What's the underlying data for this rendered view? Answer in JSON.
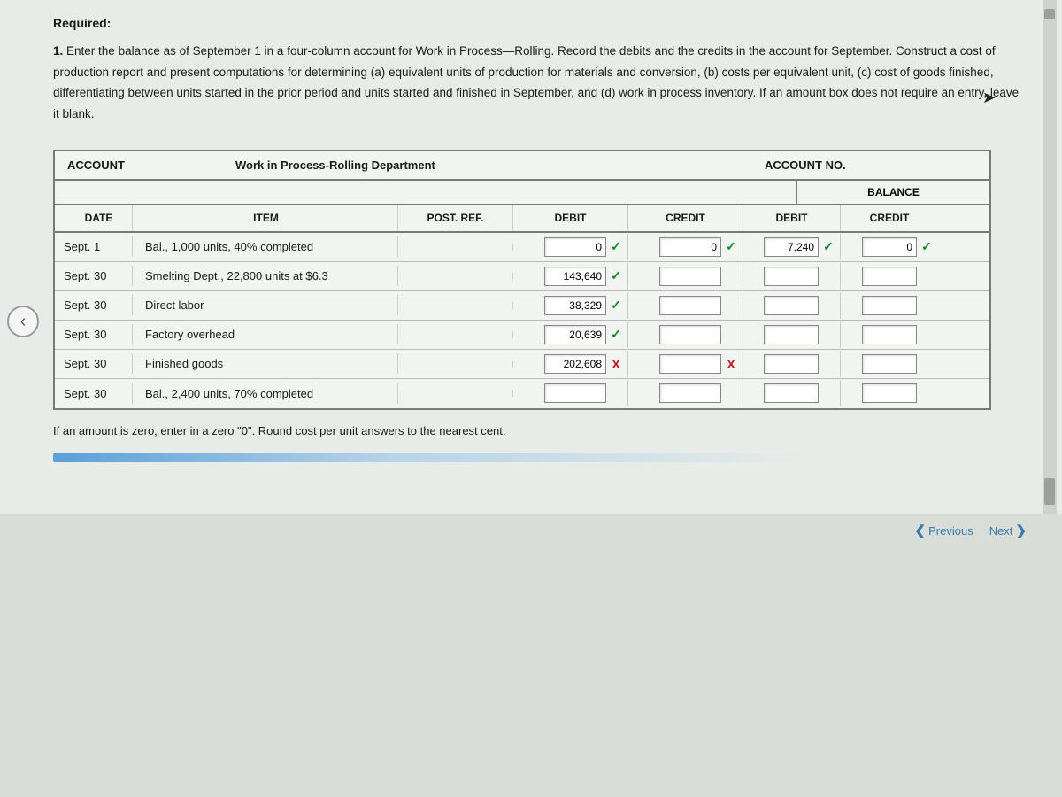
{
  "heading": "Required:",
  "instructions_prefix": "1.",
  "instructions": "Enter the balance as of September 1 in a four-column account for Work in Process—Rolling. Record the debits and the credits in the account for September. Construct a cost of production report and present computations for determining (a) equivalent units of production for materials and conversion, (b) costs per equivalent unit, (c) cost of goods finished, differentiating between units started in the prior period and units started and finished in September, and (d) work in process inventory. If an amount box does not require an entry, leave it blank.",
  "ledger": {
    "account_label": "ACCOUNT",
    "account_name": "Work in Process-Rolling Department",
    "account_no_label": "ACCOUNT NO.",
    "balance_label": "BALANCE",
    "headers": {
      "date": "DATE",
      "item": "ITEM",
      "post_ref": "POST. REF.",
      "debit": "DEBIT",
      "credit": "CREDIT",
      "bal_debit": "DEBIT",
      "bal_credit": "CREDIT"
    },
    "rows": [
      {
        "date": "Sept. 1",
        "item": "Bal., 1,000 units, 40% completed",
        "debit": {
          "v": "0",
          "m": "ok"
        },
        "credit": {
          "v": "0",
          "m": "ok"
        },
        "bdebit": {
          "v": "7,240",
          "m": "ok"
        },
        "bcredit": {
          "v": "0",
          "m": "ok"
        }
      },
      {
        "date": "Sept. 30",
        "item": "Smelting Dept., 22,800 units at $6.3",
        "debit": {
          "v": "143,640",
          "m": "ok"
        },
        "credit": {
          "v": "",
          "m": ""
        },
        "bdebit": {
          "v": "",
          "m": ""
        },
        "bcredit": {
          "v": "",
          "m": ""
        }
      },
      {
        "date": "Sept. 30",
        "item": "Direct labor",
        "debit": {
          "v": "38,329",
          "m": "ok"
        },
        "credit": {
          "v": "",
          "m": ""
        },
        "bdebit": {
          "v": "",
          "m": ""
        },
        "bcredit": {
          "v": "",
          "m": ""
        }
      },
      {
        "date": "Sept. 30",
        "item": "Factory overhead",
        "debit": {
          "v": "20,639",
          "m": "ok"
        },
        "credit": {
          "v": "",
          "m": ""
        },
        "bdebit": {
          "v": "",
          "m": ""
        },
        "bcredit": {
          "v": "",
          "m": ""
        }
      },
      {
        "date": "Sept. 30",
        "item": "Finished goods",
        "debit": {
          "v": "202,608",
          "m": "bad"
        },
        "credit": {
          "v": "",
          "m": "bad"
        },
        "bdebit": {
          "v": "",
          "m": ""
        },
        "bcredit": {
          "v": "",
          "m": ""
        }
      },
      {
        "date": "Sept. 30",
        "item": "Bal., 2,400 units, 70% completed",
        "debit": {
          "v": "",
          "m": ""
        },
        "credit": {
          "v": "",
          "m": ""
        },
        "bdebit": {
          "v": "",
          "m": ""
        },
        "bcredit": {
          "v": "",
          "m": ""
        }
      }
    ]
  },
  "footnote": "If an amount is zero, enter in a zero \"0\". Round cost per unit answers to the nearest cent.",
  "nav": {
    "previous": "Previous",
    "next": "Next"
  },
  "marks": {
    "ok": "✓",
    "bad": "X"
  },
  "colors": {
    "bg": "#e8ece8",
    "border": "#7a7a7a",
    "ok": "#0a8a2a",
    "bad": "#c01818",
    "link": "#3a7aa8"
  }
}
